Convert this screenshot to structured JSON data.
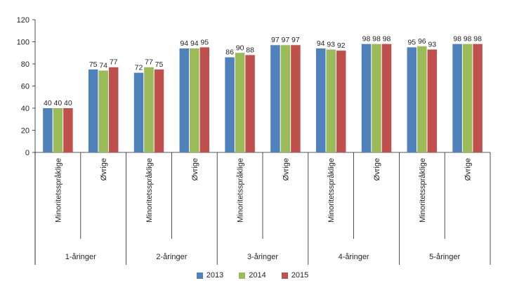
{
  "chart_data": {
    "type": "bar",
    "title": "",
    "xlabel": "",
    "ylabel": "",
    "ylim": [
      0,
      120
    ],
    "yticks": [
      0,
      20,
      40,
      60,
      80,
      100,
      120
    ],
    "groups": [
      {
        "label": "1-åringer",
        "categories": [
          "Minoritetsspråklige",
          "Øvrige"
        ]
      },
      {
        "label": "2-åringer",
        "categories": [
          "Minoritetsspråklige",
          "Øvrige"
        ]
      },
      {
        "label": "3-åringer",
        "categories": [
          "Minoritetsspråklige",
          "Øvrige"
        ]
      },
      {
        "label": "4-åringer",
        "categories": [
          "Minoritetsspråklige",
          "Øvrige"
        ]
      },
      {
        "label": "5-åringer",
        "categories": [
          "Minoritetsspråklige",
          "Øvrige"
        ]
      }
    ],
    "series": [
      {
        "name": "2013",
        "color": "#4f81bd",
        "values": [
          40,
          75,
          72,
          94,
          86,
          97,
          94,
          98,
          95,
          98
        ]
      },
      {
        "name": "2014",
        "color": "#9bbb59",
        "values": [
          40,
          74,
          77,
          94,
          90,
          97,
          93,
          98,
          96,
          98
        ]
      },
      {
        "name": "2015",
        "color": "#c0504d",
        "values": [
          40,
          77,
          75,
          95,
          88,
          97,
          92,
          98,
          93,
          98
        ]
      }
    ],
    "legend_position": "bottom"
  }
}
